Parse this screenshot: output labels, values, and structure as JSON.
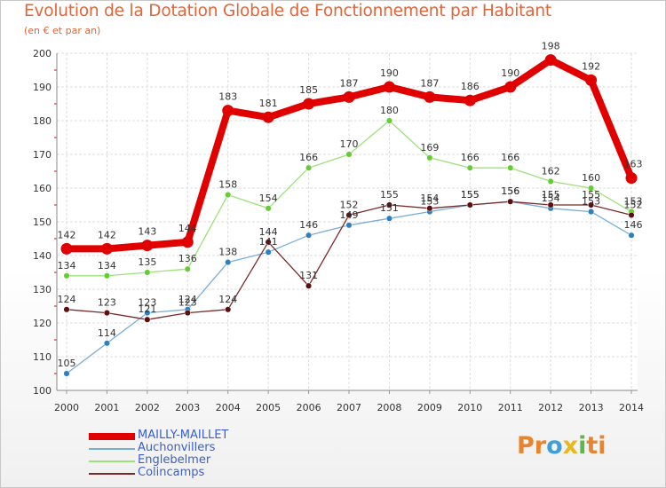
{
  "chart_data": {
    "type": "line",
    "title": "Evolution de la Dotation Globale de Fonctionnement par Habitant",
    "subtitle": "(en € et par an)",
    "xlabel": "",
    "ylabel": "",
    "ylim": [
      100,
      200
    ],
    "yticks": [
      100,
      110,
      120,
      130,
      140,
      150,
      160,
      170,
      180,
      190,
      200
    ],
    "grid": true,
    "legend_position": "bottom-left",
    "x": [
      "2000",
      "2001",
      "2002",
      "2003",
      "2004",
      "2005",
      "2006",
      "2007",
      "2008",
      "2009",
      "2010",
      "2011",
      "2012",
      "2013",
      "2014"
    ],
    "series": [
      {
        "name": "MAILLY-MAILLET",
        "color": "#e00000",
        "point_color": "#e00000",
        "values": [
          142,
          142,
          143,
          144,
          183,
          181,
          185,
          187,
          190,
          187,
          186,
          190,
          198,
          192,
          163
        ]
      },
      {
        "name": "Auchonvillers",
        "color": "#7aaed6",
        "point_color": "#2e7fc0",
        "values": [
          105,
          114,
          123,
          124,
          138,
          141,
          146,
          149,
          151,
          153,
          155,
          156,
          154,
          153,
          146
        ]
      },
      {
        "name": "Englebelmer",
        "color": "#9ee07a",
        "point_color": "#66cc33",
        "values": [
          134,
          134,
          135,
          136,
          158,
          154,
          166,
          170,
          180,
          169,
          166,
          166,
          162,
          160,
          153
        ]
      },
      {
        "name": "Colincamps",
        "color": "#7a2a2a",
        "point_color": "#5a1010",
        "values": [
          124,
          123,
          121,
          123,
          124,
          144,
          131,
          152,
          155,
          154,
          155,
          156,
          155,
          155,
          152
        ]
      }
    ]
  },
  "logo": {
    "text_parts": [
      "Pr",
      "o",
      "x",
      "i",
      "ti"
    ],
    "colors": [
      "#e8852c",
      "#3fa0d8",
      "#e8b820",
      "#5cb848",
      "#e8852c"
    ]
  }
}
